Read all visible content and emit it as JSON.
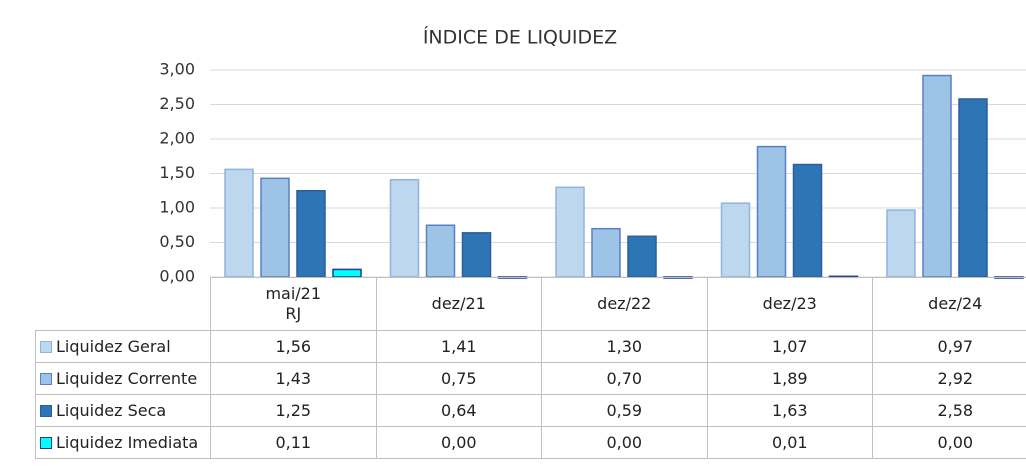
{
  "chart_data": {
    "type": "bar",
    "title": "ÍNDICE DE LIQUIDEZ",
    "categories": [
      "mai/21\nRJ",
      "dez/21",
      "dez/22",
      "dez/23",
      "dez/24"
    ],
    "series": [
      {
        "name": "Liquidez Geral",
        "color": "#bdd7ee",
        "edgecolor": "#8fb4de",
        "values": [
          1.56,
          1.41,
          1.3,
          1.07,
          0.97
        ],
        "value_labels": [
          "1,56",
          "1,41",
          "1,30",
          "1,07",
          "0,97"
        ]
      },
      {
        "name": "Liquidez Corrente",
        "color": "#9dc3e6",
        "edgecolor": "#5b7fc7",
        "values": [
          1.43,
          0.75,
          0.7,
          1.89,
          2.92
        ],
        "value_labels": [
          "1,43",
          "0,75",
          "0,70",
          "1,89",
          "2,92"
        ]
      },
      {
        "name": "Liquidez Seca",
        "color": "#2e75b6",
        "edgecolor": "#2a5f9e",
        "values": [
          1.25,
          0.64,
          0.59,
          1.63,
          2.58
        ],
        "value_labels": [
          "1,25",
          "0,64",
          "0,59",
          "1,63",
          "2,58"
        ]
      },
      {
        "name": "Liquidez Imediata",
        "color": "#00ffff",
        "edgecolor": "#1f3f8f",
        "values": [
          0.11,
          0.0,
          0.0,
          0.01,
          0.0
        ],
        "value_labels": [
          "0,11",
          "0,00",
          "0,00",
          "0,01",
          "0,00"
        ]
      }
    ],
    "ylim": [
      0,
      3
    ],
    "yticks": [
      {
        "value": 0,
        "label": "0,00"
      },
      {
        "value": 0.5,
        "label": "0,50"
      },
      {
        "value": 1,
        "label": "1,00"
      },
      {
        "value": 1.5,
        "label": "1,50"
      },
      {
        "value": 2,
        "label": "2,00"
      },
      {
        "value": 2.5,
        "label": "2,50"
      },
      {
        "value": 3,
        "label": "3,00"
      }
    ],
    "grid": true
  }
}
